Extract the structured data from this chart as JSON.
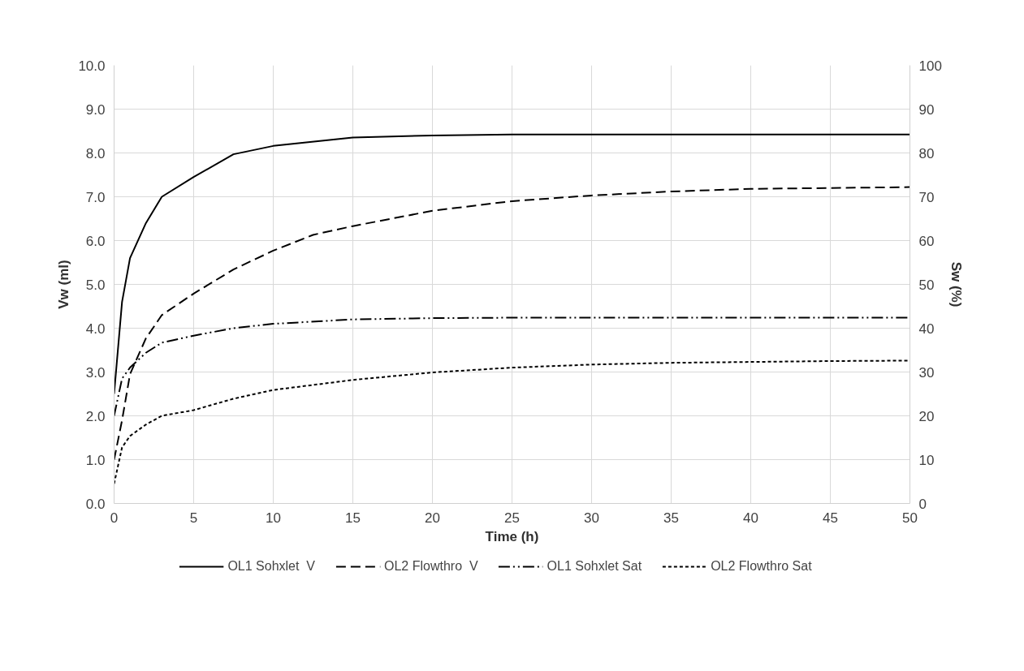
{
  "chart_data": {
    "type": "line",
    "xlabel": "Time (h)",
    "ylabel": "Vw (ml)",
    "y2label": "Sw (%)",
    "xlim": [
      0,
      50
    ],
    "xticks": [
      0,
      5,
      10,
      15,
      20,
      25,
      30,
      35,
      40,
      45,
      50
    ],
    "ylim": [
      0,
      10
    ],
    "yticks": [
      {
        "value": 0,
        "label": "0.0"
      },
      {
        "value": 1,
        "label": "1.0"
      },
      {
        "value": 2,
        "label": "2.0"
      },
      {
        "value": 3,
        "label": "3.0"
      },
      {
        "value": 4,
        "label": "4.0"
      },
      {
        "value": 5,
        "label": "5.0"
      },
      {
        "value": 6,
        "label": "6.0"
      },
      {
        "value": 7,
        "label": "7.0"
      },
      {
        "value": 8,
        "label": "8.0"
      },
      {
        "value": 9,
        "label": "9.0"
      },
      {
        "value": 10,
        "label": "10.0"
      }
    ],
    "y2lim": [
      0,
      100
    ],
    "y2ticks": [
      0,
      10,
      20,
      30,
      40,
      50,
      60,
      70,
      80,
      90,
      100
    ],
    "grid": true,
    "legend": "bottom",
    "marker": "none",
    "series": [
      {
        "name": "OL1 Sohxlet  V",
        "color": "#000000",
        "line_style": "solid",
        "x": [
          0,
          0.5,
          1,
          2,
          3,
          5,
          7.5,
          10,
          15,
          20,
          25,
          30,
          35,
          40,
          45,
          50
        ],
        "values": [
          2.5,
          4.6,
          5.6,
          6.4,
          7.0,
          7.45,
          7.97,
          8.16,
          8.35,
          8.4,
          8.42,
          8.42,
          8.42,
          8.42,
          8.42,
          8.42
        ]
      },
      {
        "name": "OL2 Flowthro  V",
        "color": "#000000",
        "line_style": "dashed",
        "x": [
          0,
          0.5,
          1,
          2,
          3,
          5,
          7.5,
          10,
          12.5,
          15,
          20,
          25,
          30,
          35,
          40,
          45,
          50
        ],
        "values": [
          1.0,
          1.9,
          2.95,
          3.77,
          4.3,
          4.79,
          5.34,
          5.77,
          6.13,
          6.33,
          6.68,
          6.9,
          7.03,
          7.12,
          7.18,
          7.2,
          7.22
        ]
      },
      {
        "name": "OL1 Sohxlet Sat",
        "color": "#000000",
        "line_style": "dashdotdot",
        "axis": "y2",
        "x": [
          0,
          0.5,
          1,
          2,
          3,
          5,
          7.5,
          10,
          15,
          20,
          25,
          30,
          35,
          40,
          45,
          50
        ],
        "values": [
          20,
          28.5,
          31,
          34.4,
          36.7,
          38.3,
          40,
          41,
          42,
          42.3,
          42.4,
          42.4,
          42.4,
          42.4,
          42.4,
          42.4
        ]
      },
      {
        "name": "OL2 Flowthro Sat",
        "color": "#000000",
        "line_style": "dotted",
        "axis": "y2",
        "x": [
          0,
          0.5,
          1,
          2,
          3,
          5,
          7.5,
          10,
          15,
          20,
          25,
          30,
          35,
          40,
          45,
          50
        ],
        "values": [
          4.5,
          12.8,
          15.4,
          18,
          20,
          21.3,
          23.9,
          25.9,
          28.2,
          29.9,
          31,
          31.7,
          32.1,
          32.3,
          32.5,
          32.6
        ]
      }
    ]
  }
}
